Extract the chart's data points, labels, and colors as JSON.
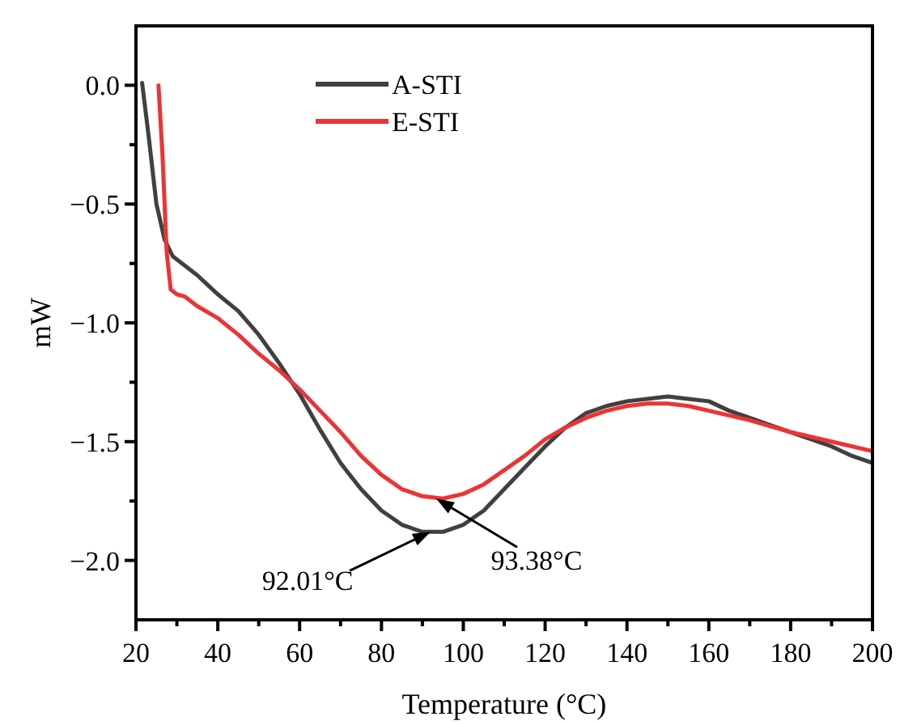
{
  "chart_data": {
    "type": "line",
    "xlabel": "Temperature (°C)",
    "ylabel": "mW",
    "xlim": [
      20,
      200
    ],
    "ylim": [
      -2.25,
      0.25
    ],
    "xticks": [
      20,
      {
        "value": 30,
        "label": null
      },
      40,
      {
        "value": 50,
        "label": null
      },
      60,
      {
        "value": 70,
        "label": null
      },
      80,
      {
        "value": 90,
        "label": null
      },
      100,
      {
        "value": 110,
        "label": null
      },
      120,
      {
        "value": 130,
        "label": null
      },
      140,
      {
        "value": 150,
        "label": null
      },
      160,
      {
        "value": 170,
        "label": null
      },
      180,
      {
        "value": 190,
        "label": null
      },
      200
    ],
    "yticks": [
      {
        "value": -2.0,
        "label": "−2.0"
      },
      {
        "value": -1.75,
        "label": null
      },
      {
        "value": -1.5,
        "label": "−1.5"
      },
      {
        "value": -1.25,
        "label": null
      },
      {
        "value": -1.0,
        "label": "−1.0"
      },
      {
        "value": -0.75,
        "label": null
      },
      {
        "value": -0.5,
        "label": "−0.5"
      },
      {
        "value": -0.25,
        "label": null
      },
      {
        "value": 0,
        "label": "0.0"
      }
    ],
    "grid": false,
    "legend": "top left",
    "line_style": "solid",
    "marker": "none",
    "series": [
      {
        "name": "A-STI",
        "color": "#404040",
        "x": [
          21.5,
          23,
          25,
          27,
          29,
          35,
          40,
          45,
          50,
          55,
          60,
          65,
          70,
          75,
          80,
          85,
          90,
          95,
          100,
          105,
          110,
          115,
          120,
          125,
          130,
          135,
          140,
          145,
          150,
          155,
          160,
          165,
          170,
          175,
          180,
          185,
          190,
          195,
          200
        ],
        "values": [
          0.01,
          -0.2,
          -0.5,
          -0.65,
          -0.72,
          -0.8,
          -0.88,
          -0.95,
          -1.05,
          -1.17,
          -1.3,
          -1.45,
          -1.59,
          -1.7,
          -1.79,
          -1.85,
          -1.88,
          -1.88,
          -1.85,
          -1.79,
          -1.7,
          -1.61,
          -1.52,
          -1.44,
          -1.38,
          -1.35,
          -1.33,
          -1.32,
          -1.31,
          -1.32,
          -1.33,
          -1.37,
          -1.4,
          -1.43,
          -1.46,
          -1.49,
          -1.52,
          -1.56,
          -1.59
        ]
      },
      {
        "name": "E-STI",
        "color": "#ee3333",
        "x": [
          25.5,
          26.5,
          27.5,
          28.5,
          30,
          32,
          35,
          40,
          45,
          50,
          55,
          60,
          65,
          70,
          75,
          80,
          85,
          90,
          95,
          100,
          105,
          110,
          115,
          120,
          125,
          130,
          135,
          140,
          145,
          150,
          155,
          160,
          170,
          180,
          190,
          200
        ],
        "values": [
          0.0,
          -0.3,
          -0.7,
          -0.86,
          -0.88,
          -0.89,
          -0.93,
          -0.98,
          -1.05,
          -1.13,
          -1.2,
          -1.28,
          -1.37,
          -1.46,
          -1.56,
          -1.64,
          -1.7,
          -1.73,
          -1.74,
          -1.72,
          -1.68,
          -1.62,
          -1.56,
          -1.49,
          -1.44,
          -1.4,
          -1.37,
          -1.35,
          -1.34,
          -1.34,
          -1.35,
          -1.37,
          -1.41,
          -1.46,
          -1.5,
          -1.54
        ]
      }
    ],
    "annotations": [
      {
        "text": "92.01°C",
        "x": 92.01,
        "y": -1.88
      },
      {
        "text": "93.38°C",
        "x": 93.38,
        "y": -1.74
      }
    ]
  }
}
